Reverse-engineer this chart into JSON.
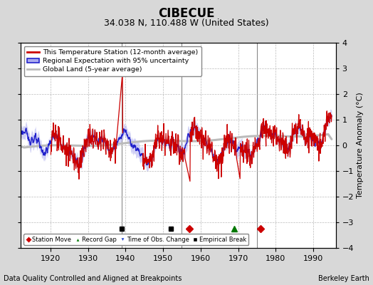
{
  "title": "CIBECUE",
  "subtitle": "34.038 N, 110.488 W (United States)",
  "ylabel": "Temperature Anomaly (°C)",
  "footer_left": "Data Quality Controlled and Aligned at Breakpoints",
  "footer_right": "Berkeley Earth",
  "xlim": [
    1912,
    1996
  ],
  "ylim": [
    -4,
    4
  ],
  "yticks": [
    -4,
    -3,
    -2,
    -1,
    0,
    1,
    2,
    3,
    4
  ],
  "xticks": [
    1920,
    1930,
    1940,
    1950,
    1960,
    1970,
    1980,
    1990
  ],
  "bg_color": "#d8d8d8",
  "plot_bg_color": "#ffffff",
  "grid_color": "#bbbbbb",
  "vertical_lines": [
    1939.0,
    1955.0,
    1975.0
  ],
  "vertical_line_color": "#777777",
  "station_moves": [
    1957.0,
    1976.0
  ],
  "empirical_breaks": [
    1939.0,
    1952.0
  ],
  "gap_markers": [
    1969.0
  ],
  "obs_changes": [],
  "marker_y": -3.25,
  "legend_labels": [
    "This Temperature Station (12-month average)",
    "Regional Expectation with 95% uncertainty",
    "Global Land (5-year average)"
  ],
  "red_line_color": "#cc0000",
  "blue_line_color": "#2222cc",
  "blue_shade_color": "#aaaaee",
  "gray_line_color": "#bbbbbb",
  "title_fontsize": 12,
  "subtitle_fontsize": 9,
  "axis_fontsize": 8,
  "tick_fontsize": 8,
  "footer_fontsize": 7
}
